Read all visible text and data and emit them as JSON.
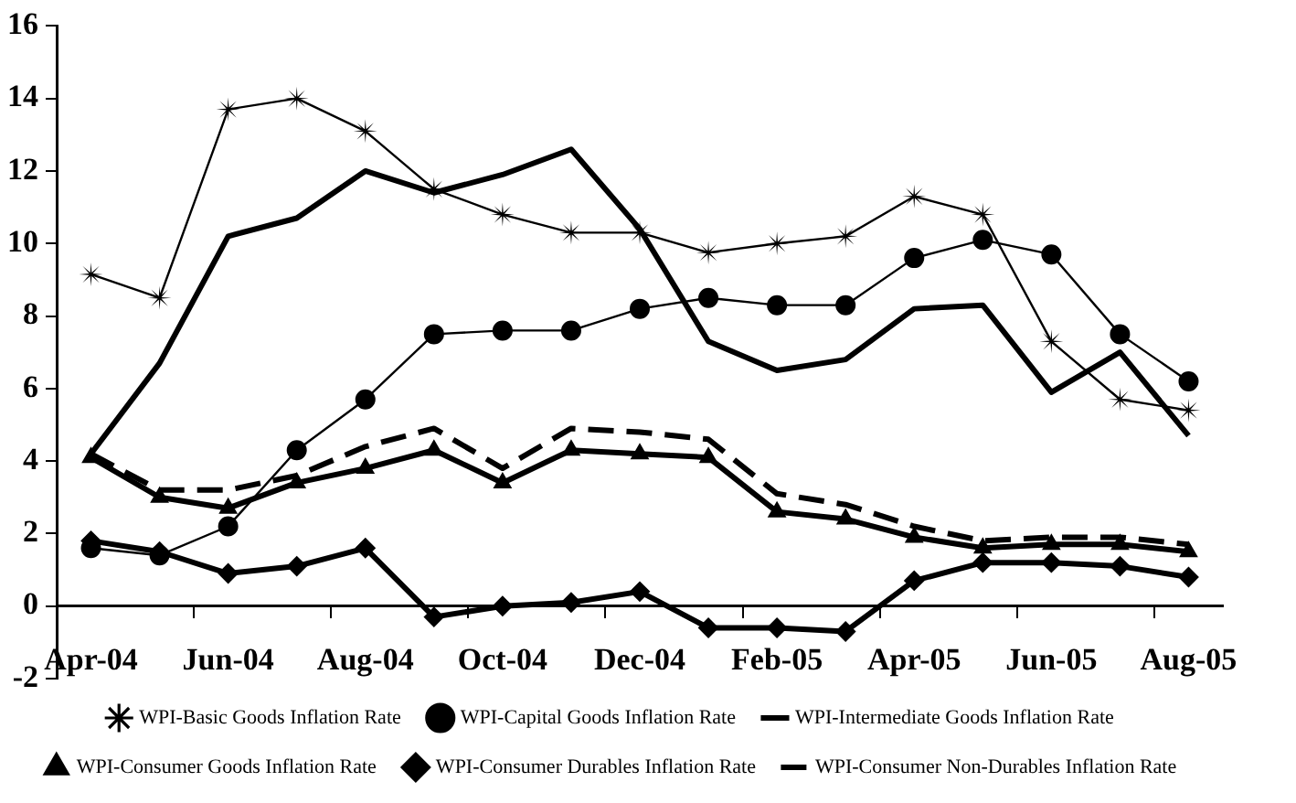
{
  "chart_data": {
    "type": "line",
    "categories": [
      "Apr-04",
      null,
      "Jun-04",
      null,
      "Aug-04",
      null,
      "Oct-04",
      null,
      "Dec-04",
      null,
      "Feb-05",
      null,
      "Apr-05",
      null,
      "Jun-05",
      null,
      "Aug-05"
    ],
    "ylim": [
      -2,
      16
    ],
    "yticks": [
      -2,
      0,
      2,
      4,
      6,
      8,
      10,
      12,
      14,
      16
    ],
    "grid": false,
    "legend": "bottom",
    "series": [
      {
        "name": "WPI-Basic Goods Inflation Rate",
        "color": "#000000",
        "marker": "star",
        "line_style": "solid",
        "values": [
          9.15,
          8.5,
          13.7,
          14.0,
          13.1,
          11.5,
          10.8,
          10.3,
          10.3,
          9.75,
          10.0,
          10.2,
          11.3,
          10.8,
          7.3,
          5.7,
          5.4
        ]
      },
      {
        "name": "WPI-Capital Goods Inflation Rate",
        "color": "#000000",
        "marker": "circle",
        "line_style": "solid",
        "values": [
          1.6,
          1.4,
          2.2,
          4.3,
          5.7,
          7.5,
          7.6,
          7.6,
          8.2,
          8.5,
          8.3,
          8.3,
          9.6,
          10.1,
          9.7,
          7.5,
          6.2
        ]
      },
      {
        "name": "WPI-Intermediate Goods Inflation Rate",
        "color": "#000000",
        "marker": "none",
        "line_style": "solid",
        "values": [
          4.2,
          6.7,
          10.2,
          10.7,
          12.0,
          11.4,
          11.9,
          12.6,
          10.4,
          7.3,
          6.5,
          6.8,
          8.2,
          8.3,
          5.9,
          7.0,
          4.7
        ]
      },
      {
        "name": "WPI-Consumer Goods Inflation Rate",
        "color": "#000000",
        "marker": "triangle",
        "line_style": "solid",
        "values": [
          4.1,
          3.0,
          2.7,
          3.4,
          3.8,
          4.3,
          3.4,
          4.3,
          4.2,
          4.1,
          2.6,
          2.4,
          1.9,
          1.6,
          1.7,
          1.7,
          1.5
        ]
      },
      {
        "name": "WPI-Consumer Durables Inflation Rate",
        "color": "#000000",
        "marker": "diamond",
        "line_style": "solid",
        "values": [
          1.8,
          1.5,
          0.9,
          1.1,
          1.6,
          -0.3,
          0.0,
          0.1,
          0.4,
          -0.6,
          -0.6,
          -0.7,
          0.7,
          1.2,
          1.2,
          1.1,
          0.8
        ]
      },
      {
        "name": "WPI-Consumer Non-Durables Inflation Rate",
        "color": "#000000",
        "marker": "none",
        "line_style": "dashed",
        "values": [
          4.2,
          3.2,
          3.2,
          3.6,
          4.4,
          4.9,
          3.8,
          4.9,
          4.8,
          4.6,
          3.1,
          2.8,
          2.2,
          1.8,
          1.9,
          1.9,
          1.7
        ]
      }
    ]
  }
}
